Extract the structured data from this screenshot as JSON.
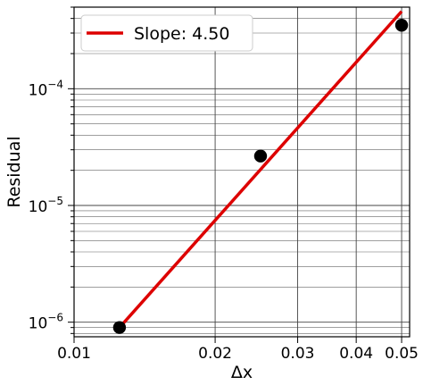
{
  "chart_data": {
    "type": "scatter",
    "xlabel": "Δx",
    "ylabel": "Residual",
    "x_scale": "log",
    "y_scale": "log",
    "xlim": [
      0.01,
      0.052
    ],
    "ylim": [
      7.5e-07,
      0.0005
    ],
    "grid": true,
    "legend_position": "top-left",
    "x_ticks": [
      {
        "value": 0.01,
        "label": "0.01"
      },
      {
        "value": 0.02,
        "label": "0.02"
      },
      {
        "value": 0.03,
        "label": "0.03"
      },
      {
        "value": 0.04,
        "label": "0.04"
      },
      {
        "value": 0.05,
        "label": "0.05"
      }
    ],
    "y_ticks": [
      {
        "value": 1e-06,
        "base": "10",
        "exp": "−6"
      },
      {
        "value": 1e-05,
        "base": "10",
        "exp": "−5"
      },
      {
        "value": 0.0001,
        "base": "10",
        "exp": "−4"
      }
    ],
    "points": {
      "color": "#000000",
      "x": [
        0.0125,
        0.025,
        0.05
      ],
      "y": [
        9e-07,
        2.65e-05,
        0.00035
      ]
    },
    "fit_line": {
      "name": "Slope: 4.50",
      "color": "#dd0000",
      "slope": 4.5,
      "x": [
        0.0125,
        0.05
      ],
      "y": [
        9e-07,
        0.00046
      ]
    }
  }
}
